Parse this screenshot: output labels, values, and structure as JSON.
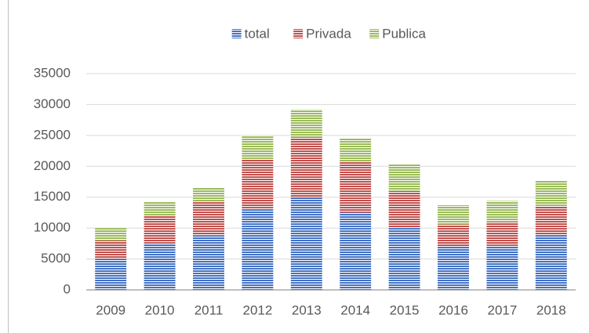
{
  "chart_data": {
    "type": "stacked_bar",
    "categories": [
      "2009",
      "2010",
      "2011",
      "2012",
      "2013",
      "2014",
      "2015",
      "2016",
      "2017",
      "2018"
    ],
    "series": [
      {
        "name": "total",
        "color": "#4472c4",
        "values": [
          5000,
          7500,
          8800,
          13200,
          15000,
          12500,
          10100,
          7000,
          7200,
          9000
        ]
      },
      {
        "name": "Privada",
        "color": "#c0504d",
        "values": [
          3000,
          4500,
          5400,
          8000,
          9700,
          8200,
          5900,
          3600,
          3800,
          4600
        ]
      },
      {
        "name": "Publica",
        "color": "#9bbb59",
        "values": [
          2000,
          2300,
          2400,
          3800,
          4500,
          3800,
          4300,
          3100,
          3400,
          4100
        ]
      }
    ],
    "ylim": [
      0,
      35000
    ],
    "yticks": [
      0,
      5000,
      10000,
      15000,
      20000,
      25000,
      30000,
      35000
    ],
    "grid": true,
    "legend": "top"
  }
}
